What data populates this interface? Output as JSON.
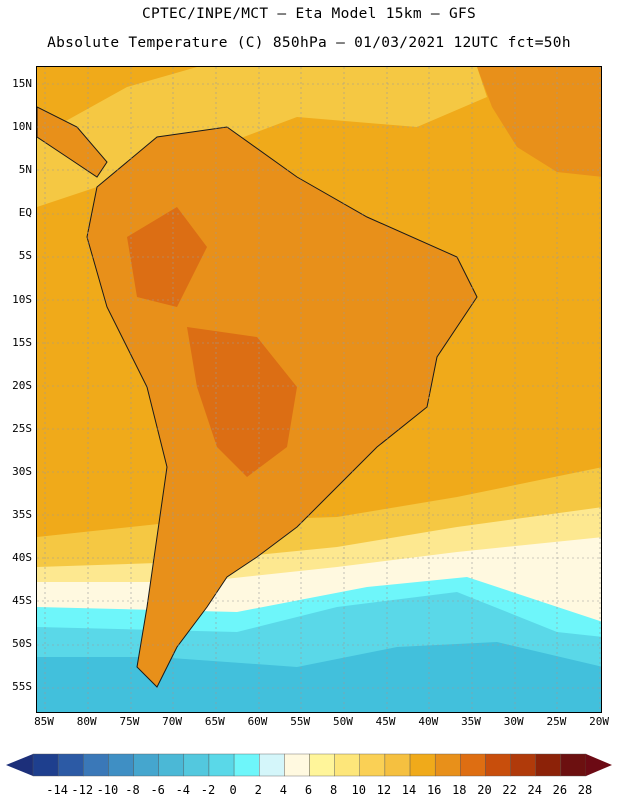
{
  "header": {
    "line1": "CPTEC/INPE/MCT –  Eta Model 15km – GFS",
    "line2": "Absolute Temperature (C) 850hPa – 01/03/2021 12UTC fct=50h"
  },
  "map": {
    "lat_labels": [
      "15N",
      "10N",
      "5N",
      "EQ",
      "5S",
      "10S",
      "15S",
      "20S",
      "25S",
      "30S",
      "35S",
      "40S",
      "45S",
      "50S",
      "55S"
    ],
    "lon_labels": [
      "85W",
      "80W",
      "75W",
      "70W",
      "65W",
      "60W",
      "55W",
      "50W",
      "45W",
      "40W",
      "35W",
      "30W",
      "25W",
      "20W"
    ],
    "colors": {
      "ocean_warm": "#f0aa1a",
      "land_warm": "#e8901a",
      "hot": "#dc6e14",
      "mid": "#f5c843",
      "mild": "#fde890",
      "cool": "#fff9e0",
      "cold": "#6ef6fa",
      "colder": "#5ad8e8",
      "coldest": "#42c0dc"
    }
  },
  "colorbar": {
    "labels": [
      "-14",
      "-12",
      "-10",
      "-8",
      "-6",
      "-4",
      "-2",
      "0",
      "2",
      "4",
      "6",
      "8",
      "10",
      "12",
      "14",
      "16",
      "18",
      "20",
      "22",
      "24",
      "26",
      "28"
    ],
    "colors": [
      "#1e3f8e",
      "#2c5aa5",
      "#3a78b8",
      "#3f8fc4",
      "#45a6ce",
      "#4bb8d6",
      "#53c8de",
      "#5ad8e8",
      "#6ef6fa",
      "#d4f6fa",
      "#fff9e0",
      "#fff59a",
      "#fde67a",
      "#fad055",
      "#f5c040",
      "#f0aa1a",
      "#e8901a",
      "#de6e12",
      "#c84e0c",
      "#b03a0a",
      "#8c2208",
      "#6c1010"
    ],
    "low_arrow_color": "#1c2f7a",
    "high_arrow_color": "#6c0a14"
  }
}
